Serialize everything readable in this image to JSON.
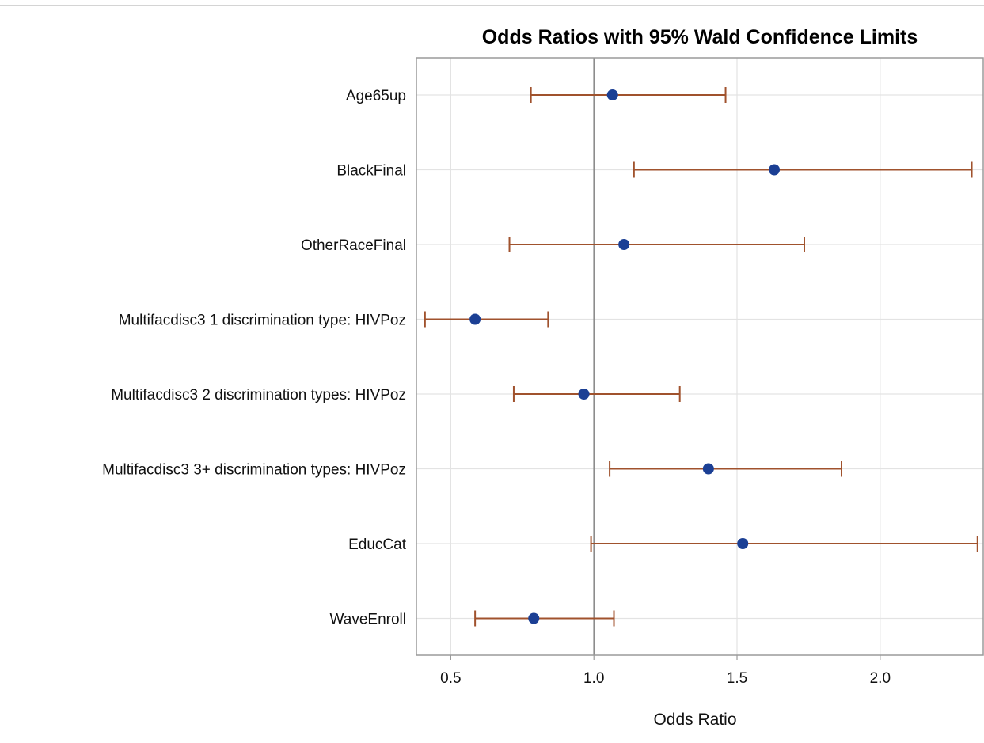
{
  "chart_data": {
    "type": "scatter",
    "title": "Odds Ratios with 95% Wald Confidence Limits",
    "xlabel": "Odds Ratio",
    "ylabel": "",
    "xlim": [
      0.38,
      2.36
    ],
    "xticks": [
      0.5,
      1.0,
      1.5,
      2.0
    ],
    "xtick_labels": [
      "0.5",
      "1.0",
      "1.5",
      "2.0"
    ],
    "reference_line": 1.0,
    "grid": true,
    "colors": {
      "point": "#1b3f94",
      "interval": "#a0522d",
      "reference": "#8c8c8c",
      "grid": "#e3e3e3",
      "frame": "#9a9a9a"
    },
    "categories": [
      "Age65up",
      "BlackFinal",
      "OtherRaceFinal",
      "Multifacdisc3 1 discrimination type: HIVPoz",
      "Multifacdisc3 2 discrimination types: HIVPoz",
      "Multifacdisc3 3+ discrimination types: HIVPoz",
      "EducCat",
      "WaveEnroll"
    ],
    "estimates": [
      1.065,
      1.63,
      1.105,
      0.585,
      0.965,
      1.4,
      1.52,
      0.79
    ],
    "lower": [
      0.78,
      1.14,
      0.705,
      0.41,
      0.72,
      1.055,
      0.99,
      0.585
    ],
    "upper": [
      1.46,
      2.32,
      1.735,
      0.84,
      1.3,
      1.865,
      2.34,
      1.07
    ]
  }
}
